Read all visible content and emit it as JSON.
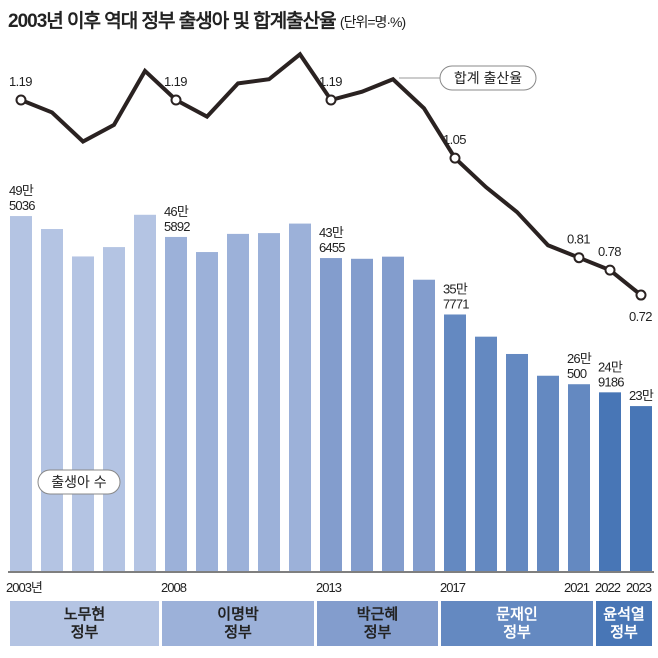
{
  "title": "2003년 이후 역대 정부 출생아 및 합계출산율",
  "unit": "(단위=명·%)",
  "chart_data": {
    "type": "bar+line",
    "categories": [
      "2003",
      "2004",
      "2005",
      "2006",
      "2007",
      "2008",
      "2009",
      "2010",
      "2011",
      "2012",
      "2013",
      "2014",
      "2015",
      "2016",
      "2017",
      "2018",
      "2019",
      "2020",
      "2021",
      "2022",
      "2023"
    ],
    "x_tick_labels": [
      {
        "year": "2003",
        "label": "2003년"
      },
      {
        "year": "2008",
        "label": "2008"
      },
      {
        "year": "2013",
        "label": "2013"
      },
      {
        "year": "2017",
        "label": "2017"
      },
      {
        "year": "2021",
        "label": "2021"
      },
      {
        "year": "2022",
        "label": "2022"
      },
      {
        "year": "2023",
        "label": "2023"
      }
    ],
    "series": [
      {
        "name": "출생아 수",
        "type": "bar",
        "values": [
          495036,
          476958,
          438707,
          451759,
          496822,
          465892,
          444849,
          470171,
          471265,
          484550,
          436455,
          435435,
          438420,
          406243,
          357771,
          326822,
          302676,
          272337,
          260500,
          249186,
          230000
        ],
        "data_labels": {
          "2003": [
            "49만",
            "5036"
          ],
          "2008": [
            "46만",
            "5892"
          ],
          "2013": [
            "43만",
            "6455"
          ],
          "2017": [
            "35만",
            "7771"
          ],
          "2021": [
            "26만",
            "500"
          ],
          "2022": [
            "24만",
            "9186"
          ],
          "2023": [
            "23만"
          ]
        }
      },
      {
        "name": "합계 출산율",
        "type": "line",
        "values": [
          1.19,
          1.16,
          1.09,
          1.13,
          1.26,
          1.19,
          1.15,
          1.23,
          1.24,
          1.3,
          1.19,
          1.21,
          1.24,
          1.17,
          1.05,
          0.98,
          0.92,
          0.84,
          0.81,
          0.78,
          0.72
        ],
        "data_labels": {
          "2003": "1.19",
          "2008": "1.19",
          "2013": "1.19",
          "2017": "1.05",
          "2021": "0.81",
          "2022": "0.78",
          "2023": "0.72"
        }
      }
    ],
    "governments": [
      {
        "name": [
          "노무현",
          "정부"
        ],
        "from": "2003",
        "to": "2007",
        "color": "#b4c4e3"
      },
      {
        "name": [
          "이명박",
          "정부"
        ],
        "from": "2008",
        "to": "2012",
        "color": "#9cb1d9"
      },
      {
        "name": [
          "박근혜",
          "정부"
        ],
        "from": "2013",
        "to": "2016",
        "color": "#839dcd"
      },
      {
        "name": [
          "문재인",
          "정부"
        ],
        "from": "2017",
        "to": "2021",
        "color": "#6489c1"
      },
      {
        "name": [
          "윤석열",
          "정부"
        ],
        "from": "2022",
        "to": "2023",
        "color": "#4876b6"
      }
    ],
    "line_color": "#2a2221",
    "grid": false
  }
}
